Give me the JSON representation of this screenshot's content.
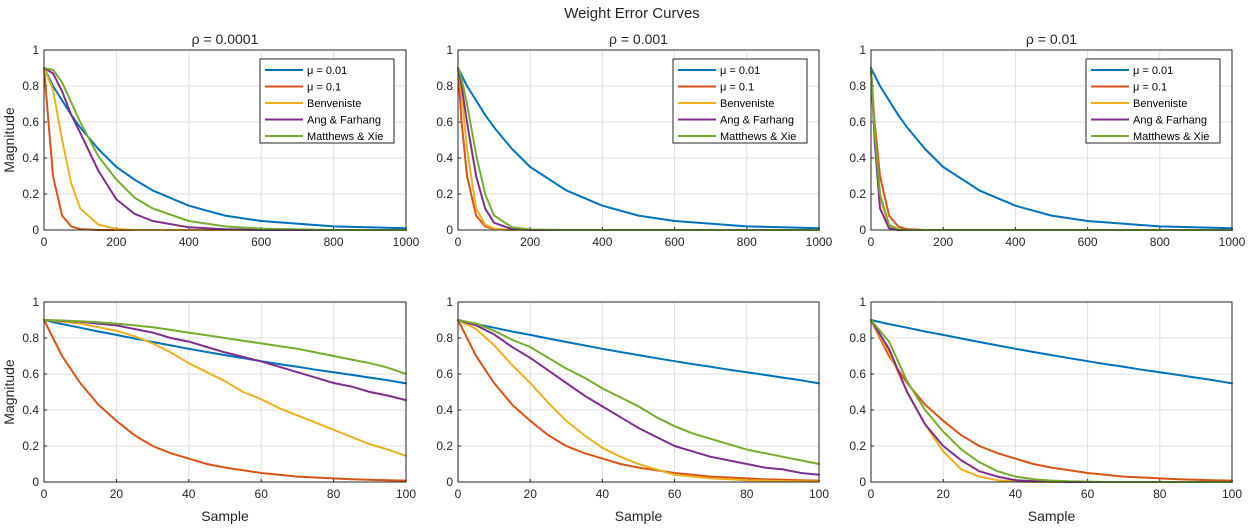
{
  "figure_title": "Weight Error Curves",
  "colors": {
    "mu_0_01": "#0072BD",
    "mu_0_1": "#D95319",
    "benveniste": "#EDB120",
    "ang_farhang": "#7E2F8E",
    "matthews_xie": "#77AC30"
  },
  "legend_labels": [
    "μ = 0.01",
    "μ = 0.1",
    "Benveniste",
    "Ang & Farhang",
    "Matthews & Xie"
  ],
  "chart_data": [
    {
      "type": "line",
      "title": "ρ = 0.0001",
      "xlabel": "",
      "ylabel": "Magnitude",
      "xlim": [
        0,
        1000
      ],
      "ylim": [
        0,
        1
      ],
      "xticks": [
        "0",
        "200",
        "400",
        "600",
        "800",
        "1000"
      ],
      "yticks": [
        "0",
        "0.2",
        "0.4",
        "0.6",
        "0.8",
        "1"
      ],
      "grid": true,
      "legend": "top-right",
      "x": [
        0,
        25,
        50,
        75,
        100,
        150,
        200,
        250,
        300,
        400,
        500,
        600,
        800,
        1000
      ],
      "series": [
        {
          "name": "μ = 0.01",
          "color": "#0072BD",
          "values": [
            0.9,
            0.8,
            0.72,
            0.64,
            0.57,
            0.45,
            0.35,
            0.28,
            0.22,
            0.135,
            0.08,
            0.05,
            0.02,
            0.01
          ]
        },
        {
          "name": "μ = 0.1",
          "color": "#D95319",
          "values": [
            0.9,
            0.3,
            0.08,
            0.02,
            0.005,
            0.0,
            0.0,
            0.0,
            0.0,
            0.0,
            0.0,
            0.0,
            0.0,
            0.0
          ]
        },
        {
          "name": "Benveniste",
          "color": "#EDB120",
          "values": [
            0.9,
            0.78,
            0.5,
            0.26,
            0.12,
            0.03,
            0.006,
            0.0,
            0.0,
            0.0,
            0.0,
            0.0,
            0.0,
            0.0
          ]
        },
        {
          "name": "Ang & Farhang",
          "color": "#7E2F8E",
          "values": [
            0.9,
            0.87,
            0.77,
            0.64,
            0.54,
            0.33,
            0.17,
            0.09,
            0.05,
            0.015,
            0.004,
            0.0,
            0.0,
            0.0
          ]
        },
        {
          "name": "Matthews & Xie",
          "color": "#77AC30",
          "values": [
            0.9,
            0.89,
            0.82,
            0.71,
            0.6,
            0.41,
            0.28,
            0.18,
            0.12,
            0.05,
            0.02,
            0.008,
            0.0,
            0.0
          ]
        }
      ]
    },
    {
      "type": "line",
      "title": "ρ = 0.001",
      "xlabel": "",
      "ylabel": "",
      "xlim": [
        0,
        1000
      ],
      "ylim": [
        0,
        1
      ],
      "xticks": [
        "0",
        "200",
        "400",
        "600",
        "800",
        "1000"
      ],
      "yticks": [
        "0",
        "0.2",
        "0.4",
        "0.6",
        "0.8",
        "1"
      ],
      "grid": true,
      "legend": "top-right",
      "x": [
        0,
        10,
        25,
        50,
        75,
        100,
        150,
        200,
        300,
        400,
        500,
        600,
        800,
        1000
      ],
      "series": [
        {
          "name": "μ = 0.01",
          "color": "#0072BD",
          "values": [
            0.9,
            0.86,
            0.8,
            0.72,
            0.64,
            0.57,
            0.45,
            0.35,
            0.22,
            0.135,
            0.08,
            0.05,
            0.02,
            0.01
          ]
        },
        {
          "name": "μ = 0.1",
          "color": "#D95319",
          "values": [
            0.9,
            0.6,
            0.3,
            0.08,
            0.02,
            0.005,
            0.0,
            0.0,
            0.0,
            0.0,
            0.0,
            0.0,
            0.0,
            0.0
          ]
        },
        {
          "name": "Benveniste",
          "color": "#EDB120",
          "values": [
            0.9,
            0.76,
            0.45,
            0.12,
            0.03,
            0.008,
            0.0,
            0.0,
            0.0,
            0.0,
            0.0,
            0.0,
            0.0,
            0.0
          ]
        },
        {
          "name": "Ang & Farhang",
          "color": "#7E2F8E",
          "values": [
            0.9,
            0.8,
            0.6,
            0.3,
            0.12,
            0.04,
            0.005,
            0.0,
            0.0,
            0.0,
            0.0,
            0.0,
            0.0,
            0.0
          ]
        },
        {
          "name": "Matthews & Xie",
          "color": "#77AC30",
          "values": [
            0.9,
            0.84,
            0.7,
            0.42,
            0.2,
            0.08,
            0.015,
            0.003,
            0.0,
            0.0,
            0.0,
            0.0,
            0.0,
            0.0
          ]
        }
      ]
    },
    {
      "type": "line",
      "title": "ρ = 0.01",
      "xlabel": "",
      "ylabel": "",
      "xlim": [
        0,
        1000
      ],
      "ylim": [
        0,
        1
      ],
      "xticks": [
        "0",
        "200",
        "400",
        "600",
        "800",
        "1000"
      ],
      "yticks": [
        "0",
        "0.2",
        "0.4",
        "0.6",
        "0.8",
        "1"
      ],
      "grid": true,
      "legend": "top-right",
      "x": [
        0,
        10,
        25,
        50,
        75,
        100,
        150,
        200,
        300,
        400,
        500,
        600,
        800,
        1000
      ],
      "series": [
        {
          "name": "μ = 0.01",
          "color": "#0072BD",
          "values": [
            0.9,
            0.86,
            0.8,
            0.72,
            0.64,
            0.57,
            0.45,
            0.35,
            0.22,
            0.135,
            0.08,
            0.05,
            0.02,
            0.01
          ]
        },
        {
          "name": "μ = 0.1",
          "color": "#D95319",
          "values": [
            0.9,
            0.6,
            0.3,
            0.08,
            0.02,
            0.005,
            0.0,
            0.0,
            0.0,
            0.0,
            0.0,
            0.0,
            0.0,
            0.0
          ]
        },
        {
          "name": "Benveniste",
          "color": "#EDB120",
          "values": [
            0.9,
            0.55,
            0.18,
            0.02,
            0.0,
            0.0,
            0.0,
            0.0,
            0.0,
            0.0,
            0.0,
            0.0,
            0.0,
            0.0
          ]
        },
        {
          "name": "Ang & Farhang",
          "color": "#7E2F8E",
          "values": [
            0.9,
            0.5,
            0.12,
            0.01,
            0.0,
            0.0,
            0.0,
            0.0,
            0.0,
            0.0,
            0.0,
            0.0,
            0.0,
            0.0
          ]
        },
        {
          "name": "Matthews & Xie",
          "color": "#77AC30",
          "values": [
            0.9,
            0.55,
            0.2,
            0.03,
            0.005,
            0.0,
            0.0,
            0.0,
            0.0,
            0.0,
            0.0,
            0.0,
            0.0,
            0.0
          ]
        }
      ]
    },
    {
      "type": "line",
      "title": "",
      "xlabel": "Sample",
      "ylabel": "Magnitude",
      "xlim": [
        0,
        100
      ],
      "ylim": [
        0,
        1
      ],
      "xticks": [
        "0",
        "20",
        "40",
        "60",
        "80",
        "100"
      ],
      "yticks": [
        "0",
        "0.2",
        "0.4",
        "0.6",
        "0.8",
        "1"
      ],
      "grid": true,
      "x": [
        0,
        5,
        10,
        15,
        20,
        25,
        30,
        35,
        40,
        45,
        50,
        55,
        60,
        65,
        70,
        75,
        80,
        85,
        90,
        95,
        100
      ],
      "series": [
        {
          "name": "μ = 0.01",
          "color": "#0072BD",
          "values": [
            0.9,
            0.877,
            0.857,
            0.836,
            0.817,
            0.797,
            0.778,
            0.759,
            0.74,
            0.722,
            0.705,
            0.688,
            0.671,
            0.655,
            0.64,
            0.624,
            0.61,
            0.595,
            0.58,
            0.565,
            0.548
          ]
        },
        {
          "name": "μ = 0.1",
          "color": "#D95319",
          "values": [
            0.9,
            0.7,
            0.55,
            0.43,
            0.34,
            0.26,
            0.2,
            0.16,
            0.13,
            0.1,
            0.08,
            0.065,
            0.05,
            0.04,
            0.03,
            0.025,
            0.02,
            0.015,
            0.012,
            0.01,
            0.008
          ]
        },
        {
          "name": "Benveniste",
          "color": "#EDB120",
          "values": [
            0.9,
            0.89,
            0.88,
            0.86,
            0.84,
            0.81,
            0.77,
            0.72,
            0.66,
            0.61,
            0.56,
            0.5,
            0.46,
            0.41,
            0.37,
            0.33,
            0.29,
            0.25,
            0.21,
            0.18,
            0.145
          ]
        },
        {
          "name": "Ang & Farhang",
          "color": "#7E2F8E",
          "values": [
            0.9,
            0.895,
            0.89,
            0.88,
            0.87,
            0.85,
            0.83,
            0.8,
            0.78,
            0.75,
            0.72,
            0.695,
            0.67,
            0.64,
            0.61,
            0.58,
            0.55,
            0.53,
            0.5,
            0.48,
            0.455
          ]
        },
        {
          "name": "Matthews & Xie",
          "color": "#77AC30",
          "values": [
            0.9,
            0.897,
            0.893,
            0.888,
            0.88,
            0.87,
            0.86,
            0.845,
            0.83,
            0.815,
            0.8,
            0.785,
            0.77,
            0.755,
            0.74,
            0.72,
            0.7,
            0.68,
            0.66,
            0.635,
            0.6
          ]
        }
      ]
    },
    {
      "type": "line",
      "title": "",
      "xlabel": "Sample",
      "ylabel": "",
      "xlim": [
        0,
        100
      ],
      "ylim": [
        0,
        1
      ],
      "xticks": [
        "0",
        "20",
        "40",
        "60",
        "80",
        "100"
      ],
      "yticks": [
        "0",
        "0.2",
        "0.4",
        "0.6",
        "0.8",
        "1"
      ],
      "grid": true,
      "x": [
        0,
        5,
        10,
        15,
        20,
        25,
        30,
        35,
        40,
        45,
        50,
        55,
        60,
        65,
        70,
        75,
        80,
        85,
        90,
        95,
        100
      ],
      "series": [
        {
          "name": "μ = 0.01",
          "color": "#0072BD",
          "values": [
            0.9,
            0.877,
            0.857,
            0.836,
            0.817,
            0.797,
            0.778,
            0.759,
            0.74,
            0.722,
            0.705,
            0.688,
            0.671,
            0.655,
            0.64,
            0.624,
            0.61,
            0.595,
            0.58,
            0.565,
            0.548
          ]
        },
        {
          "name": "μ = 0.1",
          "color": "#D95319",
          "values": [
            0.9,
            0.7,
            0.55,
            0.43,
            0.34,
            0.26,
            0.2,
            0.16,
            0.13,
            0.1,
            0.08,
            0.065,
            0.05,
            0.04,
            0.03,
            0.025,
            0.02,
            0.015,
            0.012,
            0.01,
            0.008
          ]
        },
        {
          "name": "Benveniste",
          "color": "#EDB120",
          "values": [
            0.9,
            0.85,
            0.76,
            0.65,
            0.55,
            0.44,
            0.34,
            0.26,
            0.19,
            0.14,
            0.1,
            0.07,
            0.04,
            0.03,
            0.02,
            0.015,
            0.01,
            0.008,
            0.005,
            0.003,
            0.002
          ]
        },
        {
          "name": "Ang & Farhang",
          "color": "#7E2F8E",
          "values": [
            0.9,
            0.87,
            0.82,
            0.75,
            0.69,
            0.62,
            0.55,
            0.48,
            0.42,
            0.36,
            0.3,
            0.25,
            0.2,
            0.17,
            0.14,
            0.12,
            0.1,
            0.08,
            0.07,
            0.05,
            0.04
          ]
        },
        {
          "name": "Matthews & Xie",
          "color": "#77AC30",
          "values": [
            0.9,
            0.88,
            0.84,
            0.79,
            0.75,
            0.69,
            0.63,
            0.58,
            0.52,
            0.47,
            0.42,
            0.36,
            0.31,
            0.27,
            0.24,
            0.21,
            0.18,
            0.16,
            0.14,
            0.12,
            0.1
          ]
        }
      ]
    },
    {
      "type": "line",
      "title": "",
      "xlabel": "Sample",
      "ylabel": "",
      "xlim": [
        0,
        100
      ],
      "ylim": [
        0,
        1
      ],
      "xticks": [
        "0",
        "20",
        "40",
        "60",
        "80",
        "100"
      ],
      "yticks": [
        "0",
        "0.2",
        "0.4",
        "0.6",
        "0.8",
        "1"
      ],
      "grid": true,
      "x": [
        0,
        5,
        10,
        15,
        20,
        25,
        30,
        35,
        40,
        45,
        50,
        55,
        60,
        65,
        70,
        75,
        80,
        85,
        90,
        95,
        100
      ],
      "series": [
        {
          "name": "μ = 0.01",
          "color": "#0072BD",
          "values": [
            0.9,
            0.877,
            0.857,
            0.836,
            0.817,
            0.797,
            0.778,
            0.759,
            0.74,
            0.722,
            0.705,
            0.688,
            0.671,
            0.655,
            0.64,
            0.624,
            0.61,
            0.595,
            0.58,
            0.565,
            0.548
          ]
        },
        {
          "name": "μ = 0.1",
          "color": "#D95319",
          "values": [
            0.9,
            0.7,
            0.55,
            0.43,
            0.34,
            0.26,
            0.2,
            0.16,
            0.13,
            0.1,
            0.08,
            0.065,
            0.05,
            0.04,
            0.03,
            0.025,
            0.02,
            0.015,
            0.012,
            0.01,
            0.008
          ]
        },
        {
          "name": "Benveniste",
          "color": "#EDB120",
          "values": [
            0.9,
            0.72,
            0.5,
            0.32,
            0.17,
            0.07,
            0.03,
            0.01,
            0.003,
            0.0,
            0.0,
            0.0,
            0.0,
            0.0,
            0.0,
            0.0,
            0.0,
            0.0,
            0.0,
            0.0,
            0.0
          ]
        },
        {
          "name": "Ang & Farhang",
          "color": "#7E2F8E",
          "values": [
            0.9,
            0.74,
            0.5,
            0.32,
            0.2,
            0.12,
            0.06,
            0.03,
            0.01,
            0.005,
            0.002,
            0.0,
            0.0,
            0.0,
            0.0,
            0.0,
            0.0,
            0.0,
            0.0,
            0.0,
            0.0
          ]
        },
        {
          "name": "Matthews & Xie",
          "color": "#77AC30",
          "values": [
            0.9,
            0.78,
            0.56,
            0.4,
            0.28,
            0.18,
            0.11,
            0.06,
            0.03,
            0.015,
            0.008,
            0.004,
            0.002,
            0.0,
            0.0,
            0.0,
            0.0,
            0.0,
            0.0,
            0.0,
            0.0
          ]
        }
      ]
    }
  ]
}
